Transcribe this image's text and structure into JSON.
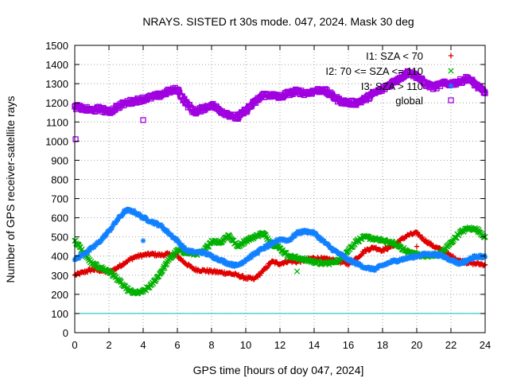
{
  "chart_data": {
    "type": "scatter",
    "title": "NRAYS. SISTED rt 30s mode. 047, 2024. Mask 30 deg",
    "xlabel": "GPS time [hours of doy 047, 2024]",
    "ylabel": "Number of GPS receiver-satellite rays",
    "xlim": [
      0,
      24
    ],
    "ylim": [
      0,
      1500
    ],
    "xticks": [
      0,
      2,
      4,
      6,
      8,
      10,
      12,
      14,
      16,
      18,
      20,
      22,
      24
    ],
    "yticks": [
      0,
      100,
      200,
      300,
      400,
      500,
      600,
      700,
      800,
      900,
      1000,
      1100,
      1200,
      1300,
      1400,
      1500
    ],
    "grid": true,
    "legend_position": "top-right",
    "threshold_line": {
      "y": 100,
      "color": "#00c0c0"
    },
    "series": [
      {
        "name": "I1: SZA < 70",
        "marker": "+",
        "color": "#e00000",
        "x": [
          0,
          0.5,
          1,
          1.5,
          2,
          2.5,
          3,
          3.5,
          4,
          4.5,
          5,
          5.5,
          6,
          6.5,
          7,
          7.5,
          8,
          8.5,
          9,
          9.5,
          10,
          10.5,
          11,
          11.5,
          12,
          12.5,
          13,
          13.5,
          14,
          14.5,
          15,
          15.5,
          16,
          16.5,
          17,
          17.5,
          18,
          18.5,
          19,
          19.5,
          20,
          20.5,
          21,
          21.5,
          22,
          22.5,
          23,
          23.5,
          24
        ],
        "y": [
          300,
          315,
          330,
          325,
          315,
          340,
          370,
          395,
          405,
          410,
          405,
          410,
          400,
          360,
          330,
          325,
          320,
          315,
          310,
          300,
          285,
          280,
          320,
          370,
          360,
          375,
          370,
          380,
          390,
          385,
          380,
          370,
          360,
          390,
          430,
          445,
          430,
          450,
          480,
          510,
          520,
          480,
          450,
          430,
          400,
          375,
          365,
          360,
          355
        ]
      },
      {
        "name": "I2: 70 <= SZA <= 110",
        "marker": "x",
        "color": "#00b000",
        "x": [
          0,
          0.5,
          1,
          1.5,
          2,
          2.5,
          3,
          3.5,
          4,
          4.5,
          5,
          5.5,
          6,
          6.5,
          7,
          7.5,
          8,
          8.5,
          9,
          9.5,
          10,
          10.5,
          11,
          11.5,
          12,
          12.5,
          13,
          13.5,
          14,
          14.5,
          15,
          15.5,
          16,
          16.5,
          17,
          17.5,
          18,
          18.5,
          19,
          19.5,
          20,
          20.5,
          21,
          21.5,
          22,
          22.5,
          23,
          23.5,
          24
        ],
        "y": [
          480,
          420,
          360,
          340,
          320,
          280,
          230,
          205,
          215,
          250,
          310,
          380,
          430,
          420,
          410,
          420,
          480,
          470,
          510,
          450,
          480,
          500,
          520,
          470,
          440,
          400,
          390,
          380,
          370,
          360,
          365,
          380,
          430,
          480,
          500,
          490,
          480,
          470,
          450,
          420,
          410,
          400,
          400,
          420,
          470,
          520,
          545,
          540,
          500
        ]
      },
      {
        "name": "I3: SZA > 110",
        "marker": "*",
        "color": "#1080ff",
        "x": [
          0,
          0.5,
          1,
          1.5,
          2,
          2.5,
          3,
          3.5,
          4,
          4.5,
          5,
          5.5,
          6,
          6.5,
          7,
          7.5,
          8,
          8.5,
          9,
          9.5,
          10,
          10.5,
          11,
          11.5,
          12,
          12.5,
          13,
          13.5,
          14,
          14.5,
          15,
          15.5,
          16,
          16.5,
          17,
          17.5,
          18,
          18.5,
          19,
          19.5,
          20,
          20.5,
          21,
          21.5,
          22,
          22.5,
          23,
          23.5,
          24
        ],
        "y": [
          380,
          410,
          440,
          480,
          530,
          590,
          640,
          630,
          600,
          580,
          560,
          520,
          480,
          430,
          420,
          420,
          400,
          380,
          360,
          350,
          380,
          410,
          440,
          460,
          490,
          480,
          520,
          530,
          520,
          480,
          440,
          410,
          380,
          360,
          340,
          330,
          350,
          370,
          380,
          390,
          400,
          410,
          410,
          400,
          380,
          360,
          380,
          400,
          395
        ]
      },
      {
        "name": "global",
        "marker": "square",
        "color": "#a000e0",
        "x": [
          0,
          0.5,
          1,
          1.5,
          2,
          2.5,
          3,
          3.5,
          4,
          4.5,
          5,
          5.5,
          6,
          6.5,
          7,
          7.5,
          8,
          8.5,
          9,
          9.5,
          10,
          10.5,
          11,
          11.5,
          12,
          12.5,
          13,
          13.5,
          14,
          14.5,
          15,
          15.5,
          16,
          16.5,
          17,
          17.5,
          18,
          18.5,
          19,
          19.5,
          20,
          20.5,
          21,
          21.5,
          22,
          22.5,
          23,
          23.5,
          24
        ],
        "y": [
          1180,
          1170,
          1160,
          1170,
          1150,
          1180,
          1200,
          1210,
          1220,
          1230,
          1240,
          1260,
          1270,
          1200,
          1150,
          1170,
          1190,
          1160,
          1140,
          1120,
          1160,
          1200,
          1240,
          1240,
          1230,
          1250,
          1260,
          1250,
          1260,
          1270,
          1240,
          1210,
          1200,
          1200,
          1220,
          1250,
          1270,
          1300,
          1330,
          1360,
          1340,
          1300,
          1280,
          1300,
          1300,
          1310,
          1330,
          1290,
          1250
        ]
      }
    ],
    "outliers": [
      {
        "series": "global",
        "x": 0.05,
        "y": 1010
      },
      {
        "series": "global",
        "x": 4.0,
        "y": 1110
      },
      {
        "series": "I3: SZA > 110",
        "x": 4.0,
        "y": 480
      },
      {
        "series": "I2: 70 <= SZA <= 110",
        "x": 13.0,
        "y": 320
      },
      {
        "series": "I1: SZA < 70",
        "x": 20.0,
        "y": 450
      }
    ]
  }
}
